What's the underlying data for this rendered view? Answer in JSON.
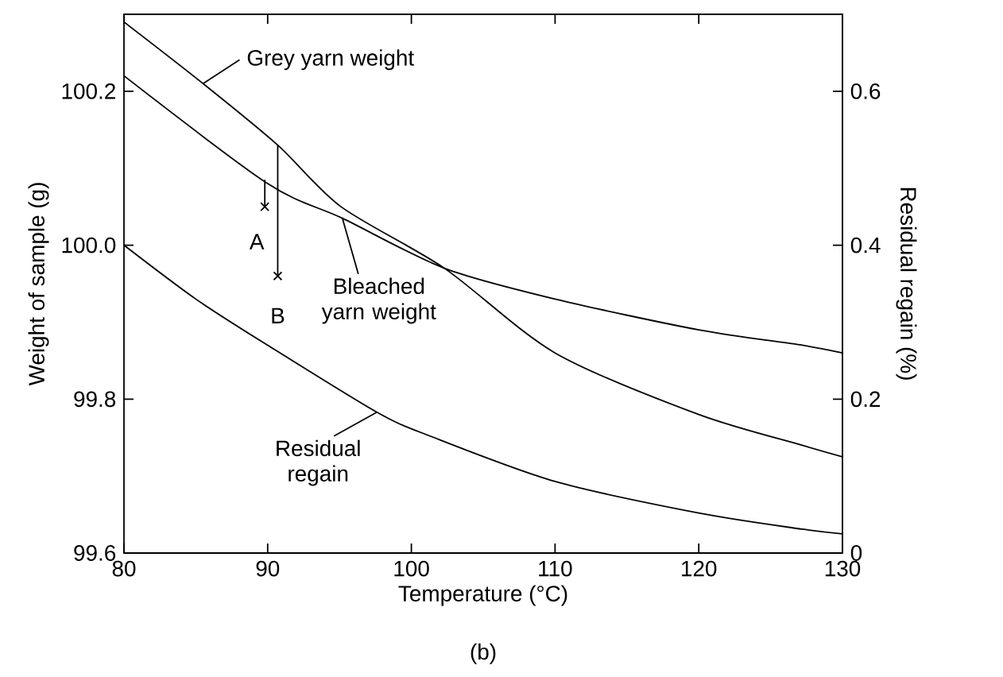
{
  "chart_data": {
    "type": "line",
    "xlabel": "Temperature (°C)",
    "ylabel": "Weight of sample (g)",
    "y2label": "Residual regain (%)",
    "xlim": [
      80,
      130
    ],
    "xticks": [
      80,
      90,
      100,
      110,
      120,
      130
    ],
    "ylim": [
      99.6,
      100.3
    ],
    "yticks": [
      99.6,
      99.8,
      {
        "value": 100,
        "label": "100.0"
      },
      100.2
    ],
    "y2lim": [
      0,
      0.7
    ],
    "y2ticks": [
      0,
      0.2,
      0.4,
      0.6
    ],
    "series": [
      {
        "color": "#000000",
        "x": [
          80,
          85.5,
          90.7,
          95.1,
          102.3,
          110,
          120,
          127.2,
          130
        ],
        "values": [
          100.29,
          100.21,
          100.13,
          100.05,
          99.97,
          99.86,
          99.78,
          99.74,
          99.725
        ]
      },
      {
        "color": "#000000",
        "x": [
          80,
          90,
          95.2,
          102.3,
          110,
          120,
          127.2,
          130
        ],
        "values": [
          100.22,
          100.08,
          100.035,
          99.97,
          99.93,
          99.89,
          99.87,
          99.86
        ]
      },
      {
        "color": "#000000",
        "axis": "y2",
        "x": [
          80,
          85,
          90,
          97.6,
          101.3,
          110,
          120,
          127.2,
          130
        ],
        "values": [
          0.4,
          0.33,
          0.27,
          0.183,
          0.152,
          0.093,
          0.052,
          0.031,
          0.025
        ]
      },
      {
        "color": "#000000",
        "x": [
          89.8,
          89.8
        ],
        "values": [
          100.085,
          100.05
        ]
      },
      {
        "color": "#000000",
        "x": [
          90.7,
          90.7
        ],
        "values": [
          100.13,
          99.96
        ]
      },
      {
        "type": "scatter",
        "color": "#000000",
        "marker": "cross",
        "x": [
          89.8,
          90.7
        ],
        "values": [
          100.05,
          99.96
        ]
      }
    ],
    "annotations": [
      {
        "text": "Grey yarn weight",
        "x": 85.5,
        "y": 100.21
      },
      {
        "text": "Bleached yarn weight",
        "x": 95.2,
        "y": 100.035
      },
      {
        "text": "Residual regain",
        "x": 97.6,
        "y": 99.783
      },
      {
        "text": "A",
        "x": 89.8,
        "y": 100.05
      },
      {
        "text": "B",
        "x": 90.7,
        "y": 99.96
      },
      "(b)"
    ]
  }
}
